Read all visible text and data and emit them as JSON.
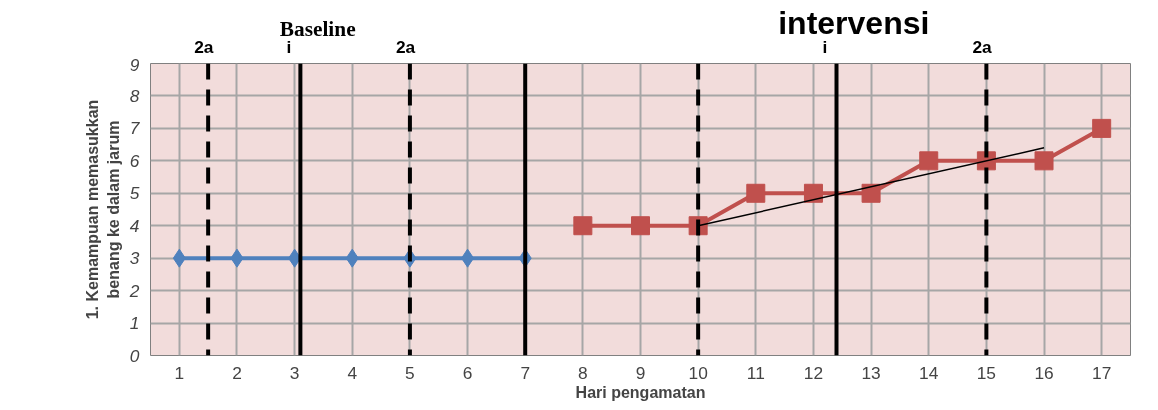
{
  "chart_data": {
    "type": "line",
    "xlabel": "Hari pengamatan",
    "ylabel": "1. Kemampuan memasukkan benang ke dalam jarum",
    "xlim": [
      0.5,
      17.5
    ],
    "xticks": [
      1,
      2,
      3,
      4,
      5,
      6,
      7,
      8,
      9,
      10,
      11,
      12,
      13,
      14,
      15,
      16,
      17
    ],
    "ylim": [
      0,
      9
    ],
    "yticks": [
      0,
      1,
      2,
      3,
      4,
      5,
      6,
      7,
      8,
      9
    ],
    "grid": true,
    "series": [
      {
        "color": "#4f81bd",
        "marker": "diamond",
        "x": [
          1,
          2,
          3,
          4,
          5,
          6,
          7
        ],
        "values": [
          3,
          3,
          3,
          3,
          3,
          3,
          3
        ]
      },
      {
        "color": "#c0504d",
        "marker": "square",
        "x": [
          8,
          9,
          10,
          11,
          12,
          13,
          14,
          15,
          16,
          17
        ],
        "values": [
          4,
          4,
          4,
          5,
          5,
          5,
          6,
          6,
          6,
          7
        ]
      },
      {
        "color": "#000000",
        "marker": "none",
        "x": [
          10,
          16
        ],
        "values": [
          4,
          6.4
        ]
      }
    ],
    "ref_lines": [
      {
        "axis": "x",
        "value": 1.5,
        "label": "2a",
        "line_style": "dashed",
        "color": "#000000"
      },
      {
        "axis": "x",
        "value": 3.1,
        "label": "i",
        "line_style": "solid",
        "color": "#000000"
      },
      {
        "axis": "x",
        "value": 5,
        "label": "2a",
        "line_style": "dashed",
        "color": "#000000"
      },
      {
        "axis": "x",
        "value": 7,
        "line_style": "solid",
        "color": "#000000"
      },
      {
        "axis": "x",
        "value": 10,
        "line_style": "dashed",
        "color": "#000000"
      },
      {
        "axis": "x",
        "value": 12.4,
        "label": "i",
        "line_style": "solid",
        "color": "#000000"
      },
      {
        "axis": "x",
        "value": 15,
        "label": "2a",
        "line_style": "dashed",
        "color": "#000000"
      }
    ],
    "annotations": [
      "Baseline",
      "intervensi"
    ]
  }
}
